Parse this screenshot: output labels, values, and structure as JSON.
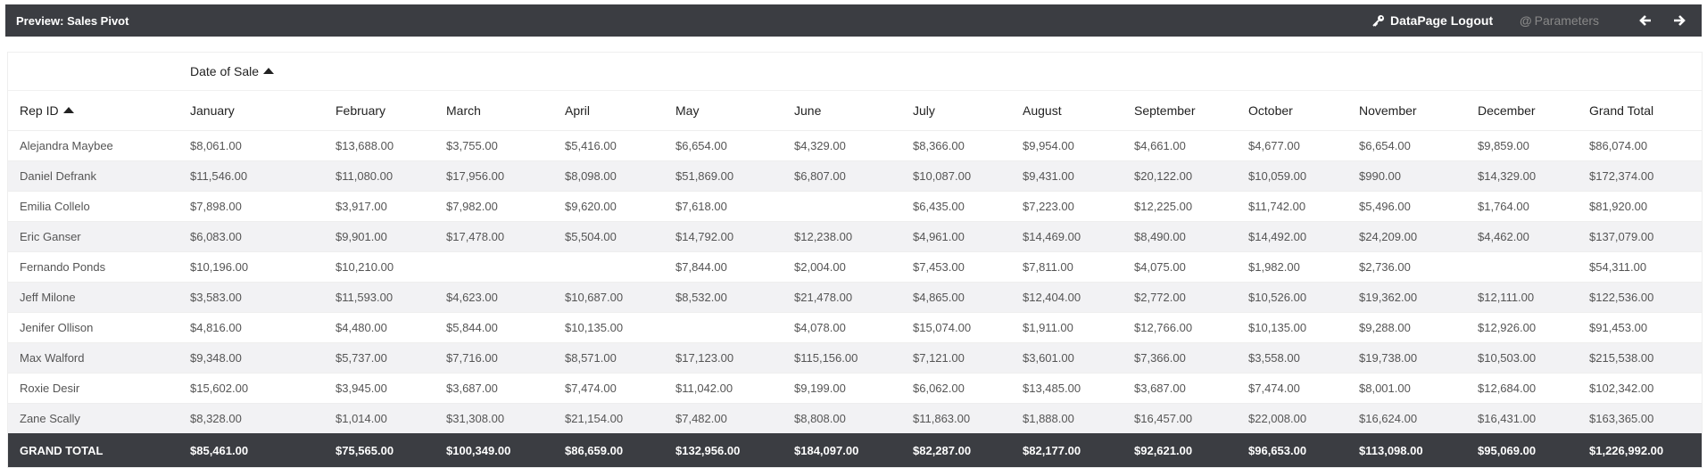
{
  "header": {
    "title": "Preview: Sales Pivot",
    "logout": "DataPage Logout",
    "parameters": "Parameters"
  },
  "table": {
    "column_group": "Date of Sale",
    "columns": [
      "Rep ID",
      "January",
      "February",
      "March",
      "April",
      "May",
      "June",
      "July",
      "August",
      "September",
      "October",
      "November",
      "December",
      "Grand Total"
    ],
    "rows": [
      [
        "Alejandra Maybee",
        "$8,061.00",
        "$13,688.00",
        "$3,755.00",
        "$5,416.00",
        "$6,654.00",
        "$4,329.00",
        "$8,366.00",
        "$9,954.00",
        "$4,661.00",
        "$4,677.00",
        "$6,654.00",
        "$9,859.00",
        "$86,074.00"
      ],
      [
        "Daniel Defrank",
        "$11,546.00",
        "$11,080.00",
        "$17,956.00",
        "$8,098.00",
        "$51,869.00",
        "$6,807.00",
        "$10,087.00",
        "$9,431.00",
        "$20,122.00",
        "$10,059.00",
        "$990.00",
        "$14,329.00",
        "$172,374.00"
      ],
      [
        "Emilia Collelo",
        "$7,898.00",
        "$3,917.00",
        "$7,982.00",
        "$9,620.00",
        "$7,618.00",
        null,
        "$6,435.00",
        "$7,223.00",
        "$12,225.00",
        "$11,742.00",
        "$5,496.00",
        "$1,764.00",
        "$81,920.00"
      ],
      [
        "Eric Ganser",
        "$6,083.00",
        "$9,901.00",
        "$17,478.00",
        "$5,504.00",
        "$14,792.00",
        "$12,238.00",
        "$4,961.00",
        "$14,469.00",
        "$8,490.00",
        "$14,492.00",
        "$24,209.00",
        "$4,462.00",
        "$137,079.00"
      ],
      [
        "Fernando Ponds",
        "$10,196.00",
        "$10,210.00",
        null,
        null,
        "$7,844.00",
        "$2,004.00",
        "$7,453.00",
        "$7,811.00",
        "$4,075.00",
        "$1,982.00",
        "$2,736.00",
        null,
        "$54,311.00"
      ],
      [
        "Jeff Milone",
        "$3,583.00",
        "$11,593.00",
        "$4,623.00",
        "$10,687.00",
        "$8,532.00",
        "$21,478.00",
        "$4,865.00",
        "$12,404.00",
        "$2,772.00",
        "$10,526.00",
        "$19,362.00",
        "$12,111.00",
        "$122,536.00"
      ],
      [
        "Jenifer Ollison",
        "$4,816.00",
        "$4,480.00",
        "$5,844.00",
        "$10,135.00",
        null,
        "$4,078.00",
        "$15,074.00",
        "$1,911.00",
        "$12,766.00",
        "$10,135.00",
        "$9,288.00",
        "$12,926.00",
        "$91,453.00"
      ],
      [
        "Max Walford",
        "$9,348.00",
        "$5,737.00",
        "$7,716.00",
        "$8,571.00",
        "$17,123.00",
        "$115,156.00",
        "$7,121.00",
        "$3,601.00",
        "$7,366.00",
        "$3,558.00",
        "$19,738.00",
        "$10,503.00",
        "$215,538.00"
      ],
      [
        "Roxie Desir",
        "$15,602.00",
        "$3,945.00",
        "$3,687.00",
        "$7,474.00",
        "$11,042.00",
        "$9,199.00",
        "$6,062.00",
        "$13,485.00",
        "$3,687.00",
        "$7,474.00",
        "$8,001.00",
        "$12,684.00",
        "$102,342.00"
      ],
      [
        "Zane Scally",
        "$8,328.00",
        "$1,014.00",
        "$31,308.00",
        "$21,154.00",
        "$7,482.00",
        "$8,808.00",
        "$11,863.00",
        "$1,888.00",
        "$16,457.00",
        "$22,008.00",
        "$16,624.00",
        "$16,431.00",
        "$163,365.00"
      ]
    ],
    "totals": [
      "GRAND TOTAL",
      "$85,461.00",
      "$75,565.00",
      "$100,349.00",
      "$86,659.00",
      "$132,956.00",
      "$184,097.00",
      "$82,287.00",
      "$82,177.00",
      "$92,621.00",
      "$96,653.00",
      "$113,098.00",
      "$95,069.00",
      "$1,226,992.00"
    ]
  }
}
